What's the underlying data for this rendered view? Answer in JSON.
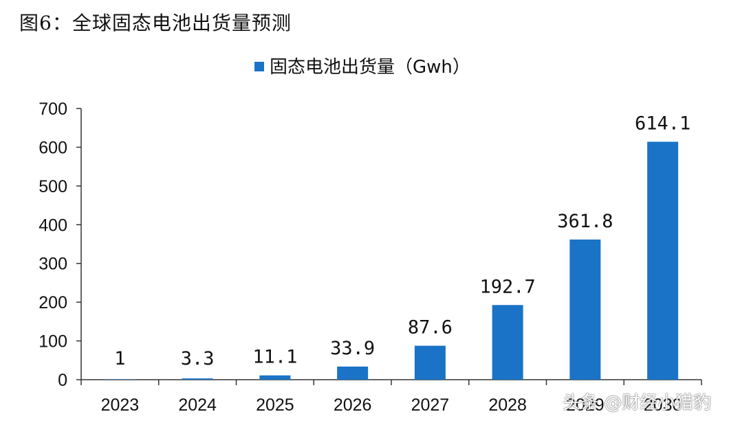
{
  "figure_title": "图6：全球固态电池出货量预测",
  "watermark": "头条 @财经小猎豹",
  "chart_data": {
    "type": "bar",
    "categories": [
      "2023",
      "2024",
      "2025",
      "2026",
      "2027",
      "2028",
      "2029",
      "2030"
    ],
    "series": [
      {
        "name": "固态电池出货量（Gwh）",
        "values": [
          1,
          3.3,
          11.1,
          33.9,
          87.6,
          192.7,
          361.8,
          614.1
        ],
        "labels": [
          "1",
          "3.3",
          "11.1",
          "33.9",
          "87.6",
          "192.7",
          "361.8",
          "614.1"
        ]
      }
    ],
    "ylim": [
      0,
      700
    ],
    "yticks": [
      0,
      100,
      200,
      300,
      400,
      500,
      600,
      700
    ],
    "legend_position": "top-center",
    "grid": false,
    "colors": {
      "bar": "#1a73c6",
      "axis": "#333333"
    }
  }
}
